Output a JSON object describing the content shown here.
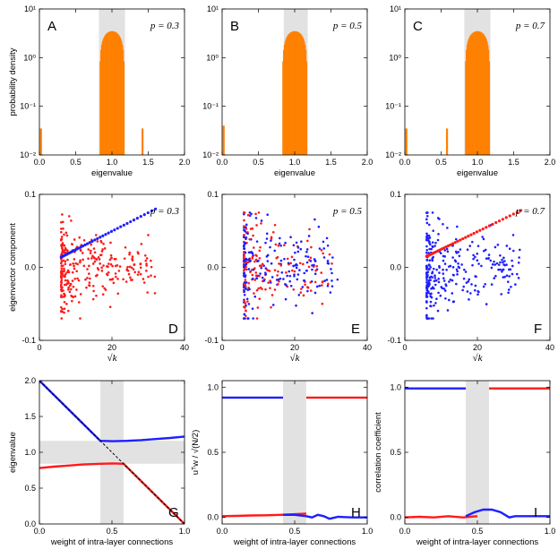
{
  "colors": {
    "orange": "#ff8000",
    "blue": "#1f1fff",
    "red": "#ff1a1a",
    "shade": "#e2e2e2"
  },
  "chart_data": [
    {
      "id": "A",
      "type": "bar",
      "panel_label": "A",
      "annotation": "p = 0.3",
      "xlabel": "eigenvalue",
      "ylabel": "probability density",
      "xlim": [
        0,
        2
      ],
      "ylim_log10": [
        -2,
        1
      ],
      "yscale": "log",
      "xticks": [
        "0.0",
        "0.5",
        "1.0",
        "1.5",
        "2.0"
      ],
      "yticks": [
        "10⁻²",
        "10⁻¹",
        "10⁰",
        "10¹"
      ],
      "shade": [
        0.82,
        1.18
      ],
      "bulk_center": 1.0,
      "bulk_halfwidth": 0.17,
      "bulk_peak": 3.5,
      "spikes": [
        {
          "x": 0.02,
          "y": 0.035
        },
        {
          "x": 1.42,
          "y": 0.035
        }
      ]
    },
    {
      "id": "B",
      "type": "bar",
      "panel_label": "B",
      "annotation": "p = 0.5",
      "xlabel": "eigenvalue",
      "ylabel": "",
      "xlim": [
        0,
        2
      ],
      "ylim_log10": [
        -2,
        1
      ],
      "yscale": "log",
      "xticks": [
        "0.0",
        "0.5",
        "1.0",
        "1.5",
        "2.0"
      ],
      "yticks": [
        "10⁻²",
        "10⁻¹",
        "10⁰",
        "10¹"
      ],
      "shade": [
        0.85,
        1.18
      ],
      "bulk_center": 1.0,
      "bulk_halfwidth": 0.17,
      "bulk_peak": 3.5,
      "spikes": [
        {
          "x": 0.02,
          "y": 0.04
        }
      ]
    },
    {
      "id": "C",
      "type": "bar",
      "panel_label": "C",
      "annotation": "p = 0.7",
      "xlabel": "eigenvalue",
      "ylabel": "",
      "xlim": [
        0,
        2
      ],
      "ylim_log10": [
        -2,
        1
      ],
      "yscale": "log",
      "xticks": [
        "0.0",
        "0.5",
        "1.0",
        "1.5",
        "2.0"
      ],
      "yticks": [
        "10⁻²",
        "10⁻¹",
        "10⁰",
        "10¹"
      ],
      "shade": [
        0.82,
        1.18
      ],
      "bulk_center": 1.0,
      "bulk_halfwidth": 0.17,
      "bulk_peak": 3.5,
      "spikes": [
        {
          "x": 0.02,
          "y": 0.035
        },
        {
          "x": 0.58,
          "y": 0.035
        }
      ]
    },
    {
      "id": "D",
      "type": "scatter",
      "panel_label": "D",
      "annotation": "p = 0.3",
      "xlabel": "√k",
      "ylabel": "eigenvector component",
      "xlim": [
        0,
        40
      ],
      "ylim": [
        -0.1,
        0.1
      ],
      "xticks": [
        "0",
        "20",
        "40"
      ],
      "xtick_values": [
        0,
        20,
        40
      ],
      "yticks": [
        "-0.1",
        "0.0",
        "0.1"
      ],
      "ytick_values": [
        -0.1,
        0,
        0.1
      ],
      "line_color": "blue",
      "cloud_color": "red",
      "line_x": [
        6,
        32
      ],
      "line_y": [
        0.014,
        0.08
      ],
      "cloud_spread": 0.042,
      "cloud_count": 300
    },
    {
      "id": "E",
      "type": "scatter",
      "panel_label": "E",
      "annotation": "p = 0.5",
      "xlabel": "√k",
      "ylabel": "",
      "xlim": [
        0,
        40
      ],
      "ylim": [
        -0.1,
        0.1
      ],
      "xticks": [
        "0",
        "20",
        "40"
      ],
      "xtick_values": [
        0,
        20,
        40
      ],
      "yticks": [
        "-0.1",
        "0.0",
        "0.1"
      ],
      "ytick_values": [
        -0.1,
        0,
        0.1
      ],
      "line_color": "none",
      "cloud_color": "mixed",
      "cloud_spread": 0.05,
      "cloud_count": 380
    },
    {
      "id": "F",
      "type": "scatter",
      "panel_label": "F",
      "annotation": "p = 0.7",
      "xlabel": "√k",
      "ylabel": "",
      "xlim": [
        0,
        40
      ],
      "ylim": [
        -0.1,
        0.1
      ],
      "xticks": [
        "0",
        "20",
        "40"
      ],
      "xtick_values": [
        0,
        20,
        40
      ],
      "yticks": [
        "-0.1",
        "0.0",
        "0.1"
      ],
      "ytick_values": [
        -0.1,
        0,
        0.1
      ],
      "line_color": "red",
      "cloud_color": "blue",
      "line_x": [
        6,
        32
      ],
      "line_y": [
        0.015,
        0.078
      ],
      "cloud_spread": 0.045,
      "cloud_count": 300
    },
    {
      "id": "G",
      "type": "line",
      "panel_label": "G",
      "xlabel": "weight of intra-layer connections",
      "ylabel": "eigenvalue",
      "xlim": [
        0,
        1
      ],
      "ylim": [
        0,
        2
      ],
      "xticks": [
        "0.0",
        "0.5",
        "1.0"
      ],
      "xtick_values": [
        0,
        0.5,
        1
      ],
      "yticks": [
        "0.0",
        "0.5",
        "1.0",
        "1.5",
        "2.0"
      ],
      "ytick_values": [
        0,
        0.5,
        1,
        1.5,
        2
      ],
      "vshade": [
        0.42,
        0.58
      ],
      "hshade": [
        0.84,
        1.16
      ],
      "series": [
        {
          "name": "blue",
          "color": "blue",
          "x": [
            0,
            0.1,
            0.2,
            0.3,
            0.42,
            0.5,
            0.6,
            0.7,
            0.8,
            0.9,
            1.0
          ],
          "y": [
            2.0,
            1.8,
            1.6,
            1.4,
            1.16,
            1.155,
            1.16,
            1.17,
            1.185,
            1.2,
            1.22
          ]
        },
        {
          "name": "red",
          "color": "red",
          "x": [
            0,
            0.1,
            0.2,
            0.3,
            0.42,
            0.5,
            0.58,
            0.7,
            0.8,
            0.9,
            1.0
          ],
          "y": [
            0.78,
            0.8,
            0.815,
            0.83,
            0.84,
            0.845,
            0.84,
            0.6,
            0.4,
            0.2,
            0.0
          ]
        },
        {
          "name": "dashed",
          "color": "black",
          "dash": true,
          "x": [
            0,
            1
          ],
          "y": [
            2,
            0
          ]
        }
      ]
    },
    {
      "id": "H",
      "type": "line",
      "panel_label": "H",
      "xlabel": "weight of intra-layer connections",
      "ylabel": "uᵀw / √(N/2)",
      "xlim": [
        0,
        1
      ],
      "ylim": [
        -0.05,
        1.05
      ],
      "xticks": [
        "0.0",
        "0.5",
        "1.0"
      ],
      "xtick_values": [
        0,
        0.5,
        1
      ],
      "yticks": [
        "0.0",
        "0.5",
        "1.0"
      ],
      "ytick_values": [
        0,
        0.5,
        1
      ],
      "vshade": [
        0.42,
        0.58
      ],
      "series": [
        {
          "name": "blue-top",
          "color": "blue",
          "x": [
            0,
            0.42
          ],
          "y": [
            0.92,
            0.92
          ]
        },
        {
          "name": "red-top",
          "color": "red",
          "x": [
            0.58,
            1.0
          ],
          "y": [
            0.92,
            0.92
          ]
        },
        {
          "name": "red-bottom",
          "color": "red",
          "x": [
            0,
            0.1,
            0.2,
            0.3,
            0.4,
            0.5,
            0.58
          ],
          "y": [
            0.01,
            0.012,
            0.015,
            0.017,
            0.02,
            0.025,
            0.03
          ]
        },
        {
          "name": "blue-bottom",
          "color": "blue",
          "x": [
            0.42,
            0.5,
            0.58,
            0.62,
            0.66,
            0.7,
            0.74,
            0.8,
            0.9,
            1.0
          ],
          "y": [
            0.02,
            0.02,
            0.01,
            0.0,
            0.02,
            0.01,
            -0.01,
            0.005,
            0.0,
            0.0
          ]
        }
      ]
    },
    {
      "id": "I",
      "type": "line",
      "panel_label": "I",
      "xlabel": "weight of intra-layer connections",
      "ylabel": "correlation coefficient",
      "xlim": [
        0,
        1
      ],
      "ylim": [
        -0.05,
        1.05
      ],
      "xticks": [
        "0.0",
        "0.5",
        "1.0"
      ],
      "xtick_values": [
        0,
        0.5,
        1
      ],
      "yticks": [
        "0.0",
        "0.5",
        "1.0"
      ],
      "ytick_values": [
        0,
        0.5,
        1
      ],
      "vshade": [
        0.42,
        0.58
      ],
      "series": [
        {
          "name": "blue-top",
          "color": "blue",
          "x": [
            0,
            0.42
          ],
          "y": [
            0.99,
            0.99
          ]
        },
        {
          "name": "red-top",
          "color": "red",
          "x": [
            0.58,
            1.0
          ],
          "y": [
            0.99,
            0.99
          ]
        },
        {
          "name": "red-bottom",
          "color": "red",
          "x": [
            0,
            0.1,
            0.2,
            0.3,
            0.4,
            0.5
          ],
          "y": [
            0.0,
            0.005,
            0.0,
            0.01,
            0.0,
            0.01
          ]
        },
        {
          "name": "blue-bottom",
          "color": "blue",
          "x": [
            0.42,
            0.48,
            0.54,
            0.6,
            0.66,
            0.72,
            0.76,
            0.8,
            0.9,
            1.0
          ],
          "y": [
            0.01,
            0.04,
            0.06,
            0.06,
            0.04,
            0.0,
            0.01,
            0.01,
            0.01,
            0.01
          ]
        }
      ]
    }
  ]
}
